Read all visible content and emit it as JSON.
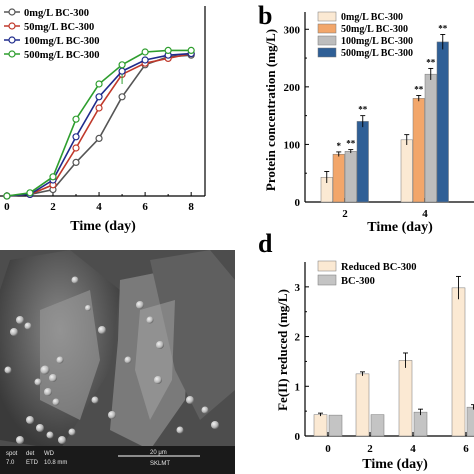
{
  "panels": {
    "b_label": "b",
    "d_label": "d"
  },
  "chart_data": [
    {
      "type": "line",
      "panel": "a",
      "xlabel": "Time (day)",
      "ylabel": "",
      "xlim": [
        -0.3,
        8.6
      ],
      "ylim": [
        0,
        1.0
      ],
      "x_ticks": [
        "0",
        "2",
        "4",
        "6",
        "8"
      ],
      "grid": false,
      "legend_position": "top-left",
      "series": [
        {
          "name": "0mg/L    BC-300",
          "color": "#555555",
          "marker": "circle-open",
          "x": [
            0,
            1,
            2,
            3,
            4,
            5,
            6,
            7,
            8
          ],
          "y": [
            0.0,
            0.01,
            0.04,
            0.21,
            0.36,
            0.62,
            0.82,
            0.87,
            0.88
          ]
        },
        {
          "name": "50mg/L   BC-300",
          "color": "#c0392b",
          "marker": "circle-open",
          "x": [
            0,
            1,
            2,
            3,
            4,
            5,
            6,
            7,
            8
          ],
          "y": [
            0.0,
            0.01,
            0.07,
            0.3,
            0.55,
            0.76,
            0.83,
            0.86,
            0.89
          ]
        },
        {
          "name": "100mg/L  BC-300",
          "color": "#1f2b8c",
          "marker": "circle-open",
          "x": [
            0,
            1,
            2,
            3,
            4,
            5,
            6,
            7,
            8
          ],
          "y": [
            0.0,
            0.01,
            0.1,
            0.37,
            0.62,
            0.78,
            0.85,
            0.88,
            0.89
          ]
        },
        {
          "name": "500mg/L  BC-300",
          "color": "#2e9e2e",
          "marker": "circle-open",
          "x": [
            0,
            1,
            2,
            3,
            4,
            5,
            6,
            7,
            8
          ],
          "y": [
            0.0,
            0.02,
            0.12,
            0.48,
            0.7,
            0.82,
            0.9,
            0.91,
            0.91
          ]
        }
      ]
    },
    {
      "type": "bar",
      "panel": "b",
      "ylabel": "Protein concentration (mg/L)",
      "xlabel": "Time (day)",
      "ylim": [
        0,
        330
      ],
      "y_ticks": [
        0,
        100,
        200,
        300
      ],
      "categories": [
        "2",
        "4"
      ],
      "legend_position": "top-left",
      "series": [
        {
          "name": "0mg/L    BC-300",
          "color": "#fbe9d3",
          "values": [
            43,
            108
          ],
          "errors": [
            10,
            9
          ],
          "annotations": [
            "",
            ""
          ]
        },
        {
          "name": "50mg/L   BC-300",
          "color": "#f2a66a",
          "values": [
            83,
            180
          ],
          "errors": [
            4,
            5
          ],
          "annotations": [
            "*",
            "**"
          ]
        },
        {
          "name": "100mg/L  BC-300",
          "color": "#bdbdbd",
          "values": [
            88,
            222
          ],
          "errors": [
            3,
            10
          ],
          "annotations": [
            "**",
            "**"
          ]
        },
        {
          "name": "500mg/L  BC-300",
          "color": "#2f5f96",
          "values": [
            140,
            278
          ],
          "errors": [
            10,
            13
          ],
          "annotations": [
            "**",
            "**"
          ]
        }
      ]
    },
    {
      "type": "bar",
      "panel": "d",
      "ylabel": "Fe(II) reduced (mg/L)",
      "xlabel": "Time (day)",
      "ylim": [
        0,
        3.5
      ],
      "y_ticks": [
        0,
        1,
        2,
        3
      ],
      "categories": [
        "0",
        "2",
        "4",
        "6"
      ],
      "legend_position": "top-left",
      "series": [
        {
          "name": "Reduced BC-300",
          "color": "#fbe9d3",
          "values": [
            0.43,
            1.25,
            1.52,
            2.98
          ],
          "errors": [
            0.03,
            0.04,
            0.15,
            0.23
          ]
        },
        {
          "name": "BC-300",
          "color": "#c4c4c4",
          "values": [
            0.42,
            0.43,
            0.48,
            0.58
          ],
          "errors": [
            0.0,
            0.0,
            0.06,
            0.05
          ]
        }
      ]
    }
  ],
  "sem_info": {
    "scale_bar": "20 μm",
    "footer_left": [
      "spot",
      "7.0",
      "det",
      "ETD",
      "WD",
      "10.8 mm"
    ],
    "footer_right": "SKLMT"
  }
}
